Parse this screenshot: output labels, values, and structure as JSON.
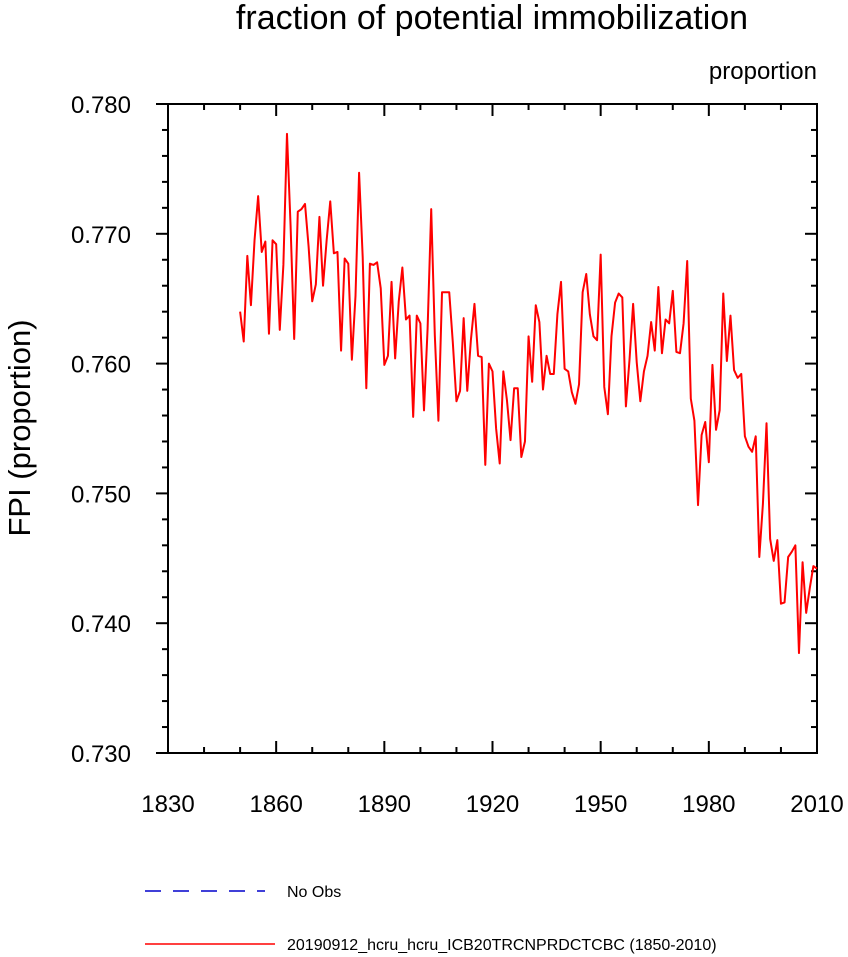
{
  "chart_data": {
    "type": "line",
    "title": "fraction of potential immobilization",
    "subtitle": "proportion",
    "ylabel": "FPI  (proportion)",
    "xlabel": "",
    "xlim": [
      1830,
      2010
    ],
    "ylim": [
      0.73,
      0.78
    ],
    "x_ticks": [
      {
        "value": 1830,
        "label": "1830"
      },
      {
        "value": 1860,
        "label": "1860"
      },
      {
        "value": 1890,
        "label": "1890"
      },
      {
        "value": 1920,
        "label": "1920"
      },
      {
        "value": 1950,
        "label": "1950"
      },
      {
        "value": 1980,
        "label": "1980"
      },
      {
        "value": 2010,
        "label": "2010"
      }
    ],
    "y_ticks": [
      {
        "value": 0.73,
        "label": "0.730"
      },
      {
        "value": 0.74,
        "label": "0.740"
      },
      {
        "value": 0.75,
        "label": "0.750"
      },
      {
        "value": 0.76,
        "label": "0.760"
      },
      {
        "value": 0.77,
        "label": "0.770"
      },
      {
        "value": 0.78,
        "label": "0.780"
      }
    ],
    "grid": false,
    "legend_position": "bottom",
    "series": [
      {
        "name": "No Obs",
        "color": "#0000cc",
        "dash": "dashed",
        "x": [],
        "values": []
      },
      {
        "name": "20190912_hcru_hcru_ICB20TRCNPRDCTCBC (1850-2010)",
        "color": "#ff0000",
        "dash": "solid",
        "x": [
          1850,
          1851,
          1852,
          1853,
          1854,
          1855,
          1856,
          1857,
          1858,
          1859,
          1860,
          1861,
          1862,
          1863,
          1864,
          1865,
          1866,
          1867,
          1868,
          1869,
          1870,
          1871,
          1872,
          1873,
          1874,
          1875,
          1876,
          1877,
          1878,
          1879,
          1880,
          1881,
          1882,
          1883,
          1884,
          1885,
          1886,
          1887,
          1888,
          1889,
          1890,
          1891,
          1892,
          1893,
          1894,
          1895,
          1896,
          1897,
          1898,
          1899,
          1900,
          1901,
          1902,
          1903,
          1904,
          1905,
          1906,
          1907,
          1908,
          1909,
          1910,
          1911,
          1912,
          1913,
          1914,
          1915,
          1916,
          1917,
          1918,
          1919,
          1920,
          1921,
          1922,
          1923,
          1924,
          1925,
          1926,
          1927,
          1928,
          1929,
          1930,
          1931,
          1932,
          1933,
          1934,
          1935,
          1936,
          1937,
          1938,
          1939,
          1940,
          1941,
          1942,
          1943,
          1944,
          1945,
          1946,
          1947,
          1948,
          1949,
          1950,
          1951,
          1952,
          1953,
          1954,
          1955,
          1956,
          1957,
          1958,
          1959,
          1960,
          1961,
          1962,
          1963,
          1964,
          1965,
          1966,
          1967,
          1968,
          1969,
          1970,
          1971,
          1972,
          1973,
          1974,
          1975,
          1976,
          1977,
          1978,
          1979,
          1980,
          1981,
          1982,
          1983,
          1984,
          1985,
          1986,
          1987,
          1988,
          1989,
          1990,
          1991,
          1992,
          1993,
          1994,
          1995,
          1996,
          1997,
          1998,
          1999,
          2000,
          2001,
          2002,
          2003,
          2004,
          2005,
          2006,
          2007,
          2008,
          2009,
          2010
        ],
        "values": [
          0.764,
          0.7617,
          0.7683,
          0.7645,
          0.7695,
          0.7729,
          0.7686,
          0.7694,
          0.7623,
          0.7695,
          0.7692,
          0.7626,
          0.7676,
          0.7777,
          0.7706,
          0.7619,
          0.7717,
          0.7719,
          0.7723,
          0.769,
          0.7648,
          0.7661,
          0.7713,
          0.766,
          0.7695,
          0.7725,
          0.7685,
          0.7686,
          0.761,
          0.7681,
          0.7677,
          0.7603,
          0.7652,
          0.7747,
          0.7682,
          0.7581,
          0.7677,
          0.7676,
          0.7678,
          0.7658,
          0.7599,
          0.7606,
          0.7663,
          0.7604,
          0.7648,
          0.7674,
          0.7634,
          0.7637,
          0.7559,
          0.7637,
          0.7631,
          0.7564,
          0.7627,
          0.7719,
          0.7622,
          0.7556,
          0.7655,
          0.7655,
          0.7655,
          0.7616,
          0.7571,
          0.7579,
          0.7635,
          0.7579,
          0.7618,
          0.7646,
          0.7606,
          0.7605,
          0.7522,
          0.76,
          0.7594,
          0.755,
          0.7523,
          0.7594,
          0.7572,
          0.7541,
          0.7581,
          0.7581,
          0.7528,
          0.754,
          0.7621,
          0.7586,
          0.7645,
          0.7632,
          0.758,
          0.7606,
          0.7592,
          0.7592,
          0.7638,
          0.7663,
          0.7596,
          0.7594,
          0.7578,
          0.7569,
          0.7584,
          0.7655,
          0.7669,
          0.7638,
          0.7621,
          0.7618,
          0.7684,
          0.7582,
          0.7561,
          0.7621,
          0.7647,
          0.7654,
          0.7651,
          0.7567,
          0.7603,
          0.7646,
          0.7601,
          0.7571,
          0.7594,
          0.7606,
          0.7632,
          0.761,
          0.7659,
          0.7608,
          0.7634,
          0.7631,
          0.7656,
          0.7609,
          0.7608,
          0.7631,
          0.7679,
          0.7573,
          0.7556,
          0.7491,
          0.7545,
          0.7555,
          0.7524,
          0.7599,
          0.7549,
          0.7564,
          0.7654,
          0.7602,
          0.7637,
          0.7595,
          0.7589,
          0.7592,
          0.7544,
          0.7536,
          0.7532,
          0.7544,
          0.7451,
          0.7492,
          0.7554,
          0.7465,
          0.7448,
          0.7464,
          0.7415,
          0.7416,
          0.7451,
          0.7455,
          0.746,
          0.7377,
          0.7447,
          0.7408,
          0.7427,
          0.7444,
          0.7442
        ]
      }
    ]
  }
}
